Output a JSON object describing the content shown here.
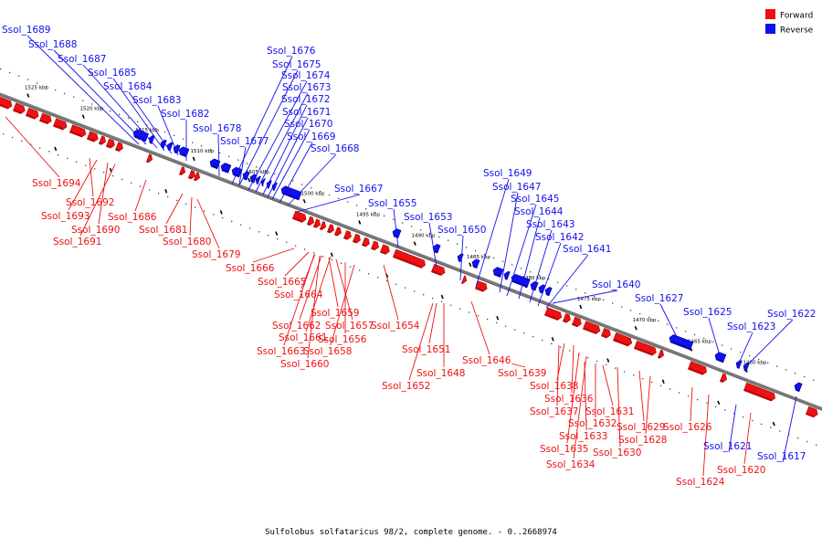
{
  "caption": "Sulfolobus solfataricus 98/2, complete genome. - 0..2668974",
  "colors": {
    "forward": "#ee1111",
    "reverse": "#1111ee",
    "forward_dark": "#a30000",
    "reverse_dark": "#0000a0",
    "axis": "#7a7a7a"
  },
  "legend": [
    {
      "label": "Forward",
      "strand": "forward"
    },
    {
      "label": "Reverse",
      "strand": "reverse"
    }
  ],
  "ticks": [
    "1525 kbp",
    "1520 kbp",
    "1515 kbp",
    "1510 kbp",
    "1505 kbp",
    "1500 kbp",
    "1495 kbp",
    "1490 kbp",
    "1485 kbp",
    "1480 kbp",
    "1475 kbp",
    "1470 kbp",
    "1465 kbp",
    "1460 kbp"
  ],
  "reverse_labels": [
    "Ssol_1689",
    "Ssol_1688",
    "Ssol_1687",
    "Ssol_1685",
    "Ssol_1684",
    "Ssol_1683",
    "Ssol_1682",
    "Ssol_1678",
    "Ssol_1677",
    "Ssol_1676",
    "Ssol_1675",
    "Ssol_1674",
    "Ssol_1673",
    "Ssol_1672",
    "Ssol_1671",
    "Ssol_1670",
    "Ssol_1669",
    "Ssol_1668",
    "Ssol_1667",
    "Ssol_1655",
    "Ssol_1653",
    "Ssol_1650",
    "Ssol_1649",
    "Ssol_1647",
    "Ssol_1645",
    "Ssol_1644",
    "Ssol_1643",
    "Ssol_1642",
    "Ssol_1641",
    "Ssol_1640",
    "Ssol_1627",
    "Ssol_1625",
    "Ssol_1623",
    "Ssol_1622",
    "Ssol_1621",
    "Ssol_1617"
  ],
  "forward_labels": [
    "Ssol_1694",
    "Ssol_1692",
    "Ssol_1693",
    "Ssol_1690",
    "Ssol_1691",
    "Ssol_1686",
    "Ssol_1681",
    "Ssol_1680",
    "Ssol_1679",
    "Ssol_1666",
    "Ssol_1665",
    "Ssol_1664",
    "Ssol_1659",
    "Ssol_1662",
    "Ssol_1657",
    "Ssol_1654",
    "Ssol_1661",
    "Ssol_1656",
    "Ssol_1663",
    "Ssol_1658",
    "Ssol_1660",
    "Ssol_1651",
    "Ssol_1646",
    "Ssol_1648",
    "Ssol_1652",
    "Ssol_1639",
    "Ssol_1638",
    "Ssol_1636",
    "Ssol_1637",
    "Ssol_1631",
    "Ssol_1632",
    "Ssol_1629",
    "Ssol_1626",
    "Ssol_1633",
    "Ssol_1628",
    "Ssol_1635",
    "Ssol_1630",
    "Ssol_1634",
    "Ssol_1620",
    "Ssol_1624"
  ]
}
